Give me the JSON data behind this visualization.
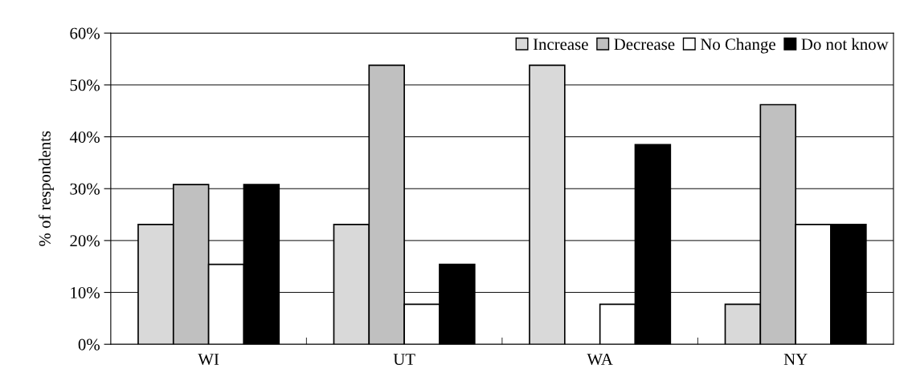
{
  "chart_data": {
    "type": "bar",
    "ylabel": "% of respondents",
    "categories": [
      "WI",
      "UT",
      "WA",
      "NY"
    ],
    "series": [
      {
        "name": "Increase",
        "color": "#d9d9d9",
        "values": [
          23.1,
          23.1,
          53.8,
          7.7
        ]
      },
      {
        "name": "Decrease",
        "color": "#c0c0c0",
        "values": [
          30.8,
          53.8,
          0,
          46.2
        ]
      },
      {
        "name": "No Change",
        "color": "#ffffff",
        "values": [
          15.4,
          7.7,
          7.7,
          23.1
        ]
      },
      {
        "name": "Do not know",
        "color": "#000000",
        "values": [
          30.8,
          15.4,
          38.5,
          23.1
        ]
      }
    ],
    "ylim": [
      0,
      60
    ],
    "yticks": [
      {
        "value": 0,
        "label": "0%"
      },
      {
        "value": 10,
        "label": "10%"
      },
      {
        "value": 20,
        "label": "20%"
      },
      {
        "value": 30,
        "label": "30%"
      },
      {
        "value": 40,
        "label": "40%"
      },
      {
        "value": 50,
        "label": "50%"
      },
      {
        "value": 60,
        "label": "60%"
      }
    ],
    "grid": "y",
    "legend": "top right"
  }
}
